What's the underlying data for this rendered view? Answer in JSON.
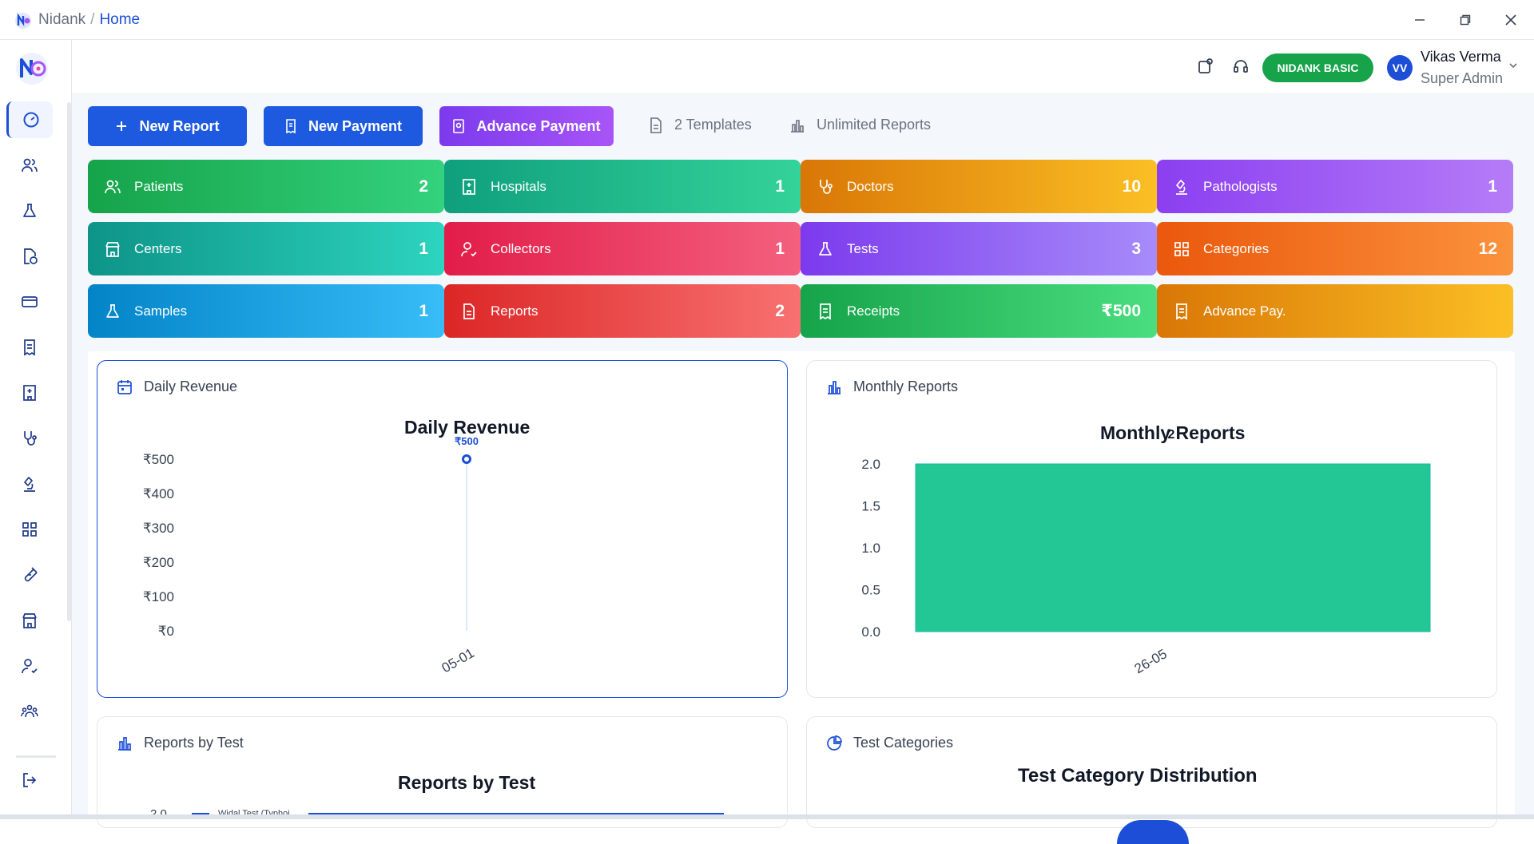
{
  "titlebar": {
    "app": "Nidank",
    "separator": "/",
    "current": "Home"
  },
  "header": {
    "plan": "NIDANK BASIC",
    "user": {
      "initials": "VV",
      "name": "Vikas Verma",
      "role": "Super Admin"
    }
  },
  "actions": {
    "new_report": "New Report",
    "new_payment": "New Payment",
    "advance_payment": "Advance Payment",
    "templates": "2 Templates",
    "reports_limit": "Unlimited Reports"
  },
  "cards": [
    {
      "label": "Patients",
      "count": "2"
    },
    {
      "label": "Hospitals",
      "count": "1"
    },
    {
      "label": "Doctors",
      "count": "10"
    },
    {
      "label": "Pathologists",
      "count": "1"
    },
    {
      "label": "Centers",
      "count": "1"
    },
    {
      "label": "Collectors",
      "count": "1"
    },
    {
      "label": "Tests",
      "count": "3"
    },
    {
      "label": "Categories",
      "count": "12"
    },
    {
      "label": "Samples",
      "count": "1"
    },
    {
      "label": "Reports",
      "count": "2"
    },
    {
      "label": "Receipts",
      "count": "₹500"
    },
    {
      "label": "Advance Pay.",
      "count": ""
    }
  ],
  "panels": {
    "daily": "Daily Revenue",
    "monthly": "Monthly Reports",
    "by_test": "Reports by Test",
    "categories": "Test Categories"
  },
  "chart_data": [
    {
      "type": "line",
      "title": "Daily Revenue",
      "x": [
        "05-01"
      ],
      "values": [
        500
      ],
      "data_label": "₹500",
      "yticks": [
        "₹0",
        "₹100",
        "₹200",
        "₹300",
        "₹400",
        "₹500"
      ],
      "ylim": [
        0,
        500
      ]
    },
    {
      "type": "bar",
      "title": "Monthly Reports",
      "categories": [
        "26-05"
      ],
      "values": [
        2
      ],
      "data_label": "2",
      "yticks": [
        "0.0",
        "0.5",
        "1.0",
        "1.5",
        "2.0"
      ],
      "ylim": [
        0,
        2
      ]
    },
    {
      "type": "bar",
      "title": "Reports by Test",
      "ytick_top": "2.0",
      "legend": "Widal Test (Typhoi"
    },
    {
      "type": "pie",
      "title": "Test Category Distribution"
    }
  ],
  "colors": {
    "primary": "#1d4ed8",
    "accent_purple": "#8b3ff0",
    "bar": "#22c795"
  }
}
